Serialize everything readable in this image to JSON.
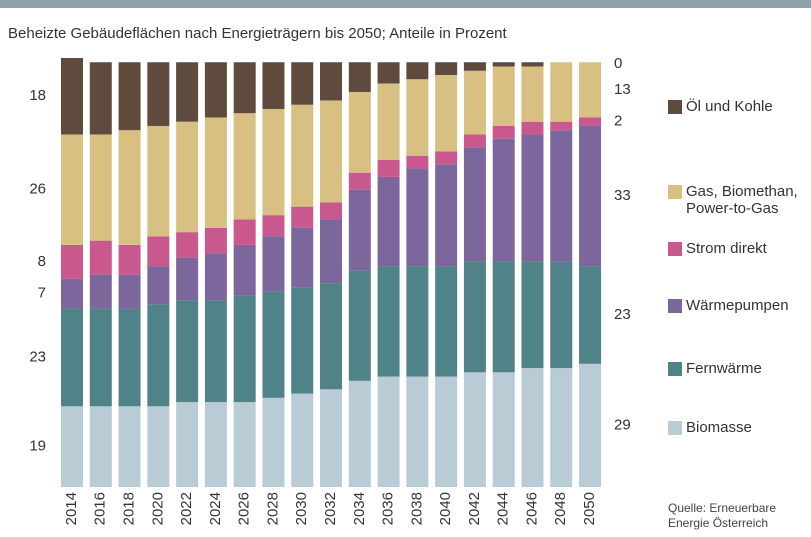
{
  "chart_data": {
    "type": "stacked_bar",
    "title": "Beheizte Gebäudeflächen nach Energieträgern bis 2050; Anteile in Prozent",
    "source": "Quelle: Erneuerbare Energie Österreich",
    "categories": [
      "2014",
      "2016",
      "2018",
      "2020",
      "2022",
      "2024",
      "2026",
      "2028",
      "2030",
      "2032",
      "2034",
      "2036",
      "2038",
      "2040",
      "2042",
      "2044",
      "2046",
      "2048",
      "2050"
    ],
    "ylim": [
      0,
      101
    ],
    "series": [
      {
        "name": "Biomasse",
        "color": "#b9ccd5",
        "values": [
          19,
          19,
          19,
          19,
          20,
          20,
          20,
          21,
          22,
          23,
          25,
          26,
          26,
          26,
          27,
          27,
          28,
          28,
          29
        ]
      },
      {
        "name": "Fernwärme",
        "color": "#4f8387",
        "values": [
          23,
          23,
          23,
          24,
          24,
          24,
          25,
          25,
          25,
          25,
          26,
          26,
          26,
          26,
          26,
          26,
          25,
          25,
          23
        ]
      },
      {
        "name": "Wärmepumpen",
        "color": "#7b679b",
        "values": [
          7,
          8,
          8,
          9,
          10,
          11,
          12,
          13,
          14,
          15,
          19,
          21,
          23,
          24,
          27,
          29,
          30,
          31,
          33
        ]
      },
      {
        "name": "Strom direkt",
        "color": "#c9588f",
        "values": [
          8,
          8,
          7,
          7,
          6,
          6,
          6,
          5,
          5,
          4,
          4,
          4,
          3,
          3,
          3,
          3,
          3,
          2,
          2
        ]
      },
      {
        "name": "Gas, Biomethan, Power-to-Gas",
        "color": "#d7c081",
        "values": [
          26,
          25,
          27,
          26,
          26,
          26,
          25,
          25,
          24,
          24,
          19,
          18,
          18,
          18,
          15,
          14,
          13,
          14,
          13
        ]
      },
      {
        "name": "Öl und Kohle",
        "color": "#5f4b3d",
        "values": [
          18,
          17,
          16,
          15,
          14,
          13,
          12,
          11,
          10,
          9,
          7,
          5,
          4,
          3,
          2,
          1,
          1,
          0,
          0
        ]
      }
    ]
  }
}
